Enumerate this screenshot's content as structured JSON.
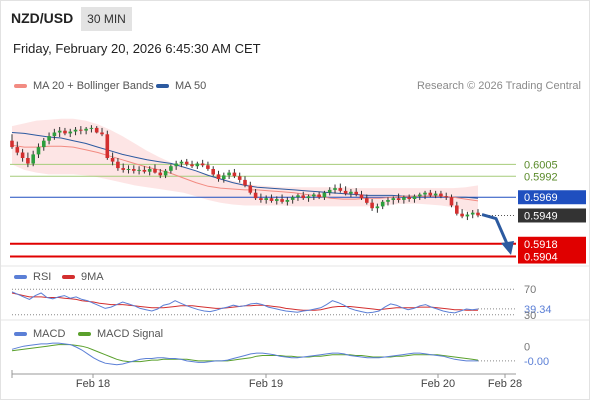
{
  "header": {
    "symbol": "NZD/USD",
    "timeframe": "30 MIN",
    "datetime": "Friday, February 20, 2026 6:45:30 AM CET",
    "credit": "Research © 2026 Trading Central"
  },
  "legend": {
    "ma20_label": "MA 20 + Bollinger Bands",
    "ma50_label": "MA 50",
    "rsi_label": "RSI",
    "rsi_ma_label": "9MA",
    "macd_label": "MACD",
    "macd_signal_label": "MACD Signal"
  },
  "colors": {
    "ma20": "#f28b82",
    "ma50": "#2c5aa0",
    "band_fill": "#fde1e1",
    "candle_up": "#2e9e3e",
    "candle_down": "#d32f2f",
    "pivot": "#1f4fbf",
    "resistance": "#a6cc7a",
    "support": "#e00000",
    "last_price": "#333333",
    "arrow": "#2c5aa0",
    "rsi": "#5b7fd6",
    "rsi_ma": "#d32f2f",
    "macd": "#5b7fd6",
    "macd_signal": "#5aa02c"
  },
  "chart_data": [
    {
      "type": "candlestick",
      "title": "NZD/USD",
      "x_tick_labels": [
        "Feb 18",
        "Feb 19",
        "Feb 20",
        "Feb 28"
      ],
      "ylim": [
        0.5898,
        0.608
      ],
      "levels": [
        {
          "value": 0.6005,
          "label": "0.6005",
          "role": "resistance"
        },
        {
          "value": 0.5992,
          "label": "0.5992",
          "role": "resistance"
        },
        {
          "value": 0.5969,
          "label": "0.5969",
          "role": "pivot"
        },
        {
          "value": 0.5949,
          "label": "0.5949",
          "role": "last"
        },
        {
          "value": 0.5918,
          "label": "0.5918",
          "role": "support"
        },
        {
          "value": 0.5904,
          "label": "0.5904",
          "role": "support"
        }
      ],
      "forecast": {
        "from_price": 0.595,
        "to_price": 0.5909,
        "direction": "down"
      },
      "candles": [
        [
          0.6031,
          0.6038,
          0.6022,
          0.6024
        ],
        [
          0.6024,
          0.603,
          0.6015,
          0.6018
        ],
        [
          0.6018,
          0.6022,
          0.6008,
          0.6012
        ],
        [
          0.6012,
          0.6018,
          0.6002,
          0.6006
        ],
        [
          0.6006,
          0.602,
          0.6003,
          0.6016
        ],
        [
          0.6016,
          0.6028,
          0.6012,
          0.6024
        ],
        [
          0.6024,
          0.6034,
          0.602,
          0.6031
        ],
        [
          0.6031,
          0.604,
          0.6027,
          0.6036
        ],
        [
          0.6036,
          0.6044,
          0.6032,
          0.604
        ],
        [
          0.604,
          0.6046,
          0.6035,
          0.6042
        ],
        [
          0.6042,
          0.6045,
          0.6037,
          0.6039
        ],
        [
          0.6039,
          0.6044,
          0.6035,
          0.6041
        ],
        [
          0.6041,
          0.6046,
          0.6037,
          0.6043
        ],
        [
          0.6043,
          0.6047,
          0.6038,
          0.6042
        ],
        [
          0.6042,
          0.6046,
          0.6038,
          0.6044
        ],
        [
          0.6044,
          0.6048,
          0.604,
          0.6045
        ],
        [
          0.6045,
          0.6047,
          0.6039,
          0.604
        ],
        [
          0.604,
          0.6045,
          0.6036,
          0.6038
        ],
        [
          0.6038,
          0.6042,
          0.601,
          0.6012
        ],
        [
          0.6012,
          0.6018,
          0.6004,
          0.6008
        ],
        [
          0.6008,
          0.6012,
          0.5998,
          0.6001
        ],
        [
          0.6001,
          0.6006,
          0.5996,
          0.5999
        ],
        [
          0.5999,
          0.6004,
          0.5995,
          0.6
        ],
        [
          0.6,
          0.6004,
          0.5995,
          0.5998
        ],
        [
          0.5998,
          0.6003,
          0.5994,
          0.5999
        ],
        [
          0.5999,
          0.6003,
          0.5995,
          0.5997
        ],
        [
          0.5997,
          0.6003,
          0.5993,
          0.6
        ],
        [
          0.6,
          0.6005,
          0.5995,
          0.5996
        ],
        [
          0.5996,
          0.6,
          0.599,
          0.5993
        ],
        [
          0.5993,
          0.6,
          0.599,
          0.5998
        ],
        [
          0.5998,
          0.6005,
          0.5995,
          0.6003
        ],
        [
          0.6003,
          0.6009,
          0.5999,
          0.6006
        ],
        [
          0.6006,
          0.601,
          0.6002,
          0.6008
        ],
        [
          0.6008,
          0.6011,
          0.6003,
          0.6005
        ],
        [
          0.6005,
          0.6009,
          0.6001,
          0.6003
        ],
        [
          0.6003,
          0.6008,
          0.6,
          0.6006
        ],
        [
          0.6006,
          0.601,
          0.6002,
          0.6004
        ],
        [
          0.6004,
          0.6008,
          0.5998,
          0.6
        ],
        [
          0.6,
          0.6003,
          0.5992,
          0.5994
        ],
        [
          0.5994,
          0.5998,
          0.5986,
          0.5989
        ],
        [
          0.5989,
          0.5996,
          0.5985,
          0.5993
        ],
        [
          0.5993,
          0.5999,
          0.5989,
          0.5996
        ],
        [
          0.5996,
          0.6,
          0.599,
          0.5992
        ],
        [
          0.5992,
          0.5996,
          0.5985,
          0.5988
        ],
        [
          0.5988,
          0.5992,
          0.598,
          0.5982
        ],
        [
          0.5982,
          0.5986,
          0.5972,
          0.5974
        ],
        [
          0.5974,
          0.5978,
          0.5966,
          0.5968
        ],
        [
          0.5968,
          0.5973,
          0.5963,
          0.5966
        ],
        [
          0.5966,
          0.5971,
          0.5962,
          0.5968
        ],
        [
          0.5968,
          0.5972,
          0.5963,
          0.5965
        ],
        [
          0.5965,
          0.597,
          0.5961,
          0.5967
        ],
        [
          0.5967,
          0.5972,
          0.5962,
          0.5964
        ],
        [
          0.5964,
          0.5969,
          0.596,
          0.5966
        ],
        [
          0.5966,
          0.5971,
          0.5962,
          0.5969
        ],
        [
          0.5969,
          0.5973,
          0.5965,
          0.5971
        ],
        [
          0.5971,
          0.5975,
          0.5966,
          0.5968
        ],
        [
          0.5968,
          0.5972,
          0.5964,
          0.597
        ],
        [
          0.597,
          0.5974,
          0.5966,
          0.5972
        ],
        [
          0.5972,
          0.5975,
          0.5967,
          0.5969
        ],
        [
          0.5969,
          0.5976,
          0.5966,
          0.5974
        ],
        [
          0.5974,
          0.598,
          0.5971,
          0.5977
        ],
        [
          0.5977,
          0.5983,
          0.5973,
          0.5979
        ],
        [
          0.5979,
          0.5984,
          0.5974,
          0.5976
        ],
        [
          0.5976,
          0.5981,
          0.5971,
          0.5973
        ],
        [
          0.5973,
          0.5978,
          0.5969,
          0.5975
        ],
        [
          0.5975,
          0.5979,
          0.597,
          0.5972
        ],
        [
          0.5972,
          0.5976,
          0.5966,
          0.5968
        ],
        [
          0.5968,
          0.5972,
          0.5961,
          0.5963
        ],
        [
          0.5963,
          0.5967,
          0.5954,
          0.5957
        ],
        [
          0.5957,
          0.5962,
          0.5952,
          0.5959
        ],
        [
          0.5959,
          0.5966,
          0.5956,
          0.5964
        ],
        [
          0.5964,
          0.5969,
          0.596,
          0.5966
        ],
        [
          0.5966,
          0.597,
          0.5961,
          0.5968
        ],
        [
          0.5968,
          0.5973,
          0.5963,
          0.5966
        ],
        [
          0.5966,
          0.5971,
          0.5962,
          0.5969
        ],
        [
          0.5969,
          0.5972,
          0.5964,
          0.5967
        ],
        [
          0.5967,
          0.5972,
          0.5963,
          0.597
        ],
        [
          0.597,
          0.5974,
          0.5966,
          0.5972
        ],
        [
          0.5972,
          0.5976,
          0.5967,
          0.5974
        ],
        [
          0.5974,
          0.5977,
          0.5969,
          0.5971
        ],
        [
          0.5971,
          0.5976,
          0.5968,
          0.5973
        ],
        [
          0.5973,
          0.5976,
          0.5968,
          0.597
        ],
        [
          0.597,
          0.5974,
          0.5966,
          0.5969
        ],
        [
          0.5969,
          0.5972,
          0.5958,
          0.596
        ],
        [
          0.596,
          0.5964,
          0.5949,
          0.5951
        ],
        [
          0.5951,
          0.5956,
          0.5946,
          0.5948
        ],
        [
          0.5948,
          0.5953,
          0.5944,
          0.595
        ],
        [
          0.595,
          0.5955,
          0.5946,
          0.5952
        ],
        [
          0.5952,
          0.5956,
          0.5947,
          0.5949
        ]
      ],
      "ma20": [
        0.6026,
        0.6024,
        0.6024,
        0.6025,
        0.6025,
        0.6024,
        0.6021,
        0.6018,
        0.6014,
        0.601,
        0.6006,
        0.6002,
        0.5999,
        0.5995,
        0.599,
        0.5985,
        0.5981,
        0.5979,
        0.5978,
        0.5977,
        0.5977,
        0.5976,
        0.5975,
        0.5974,
        0.5972,
        0.597,
        0.5968,
        0.5967,
        0.5967,
        0.5968,
        0.5968,
        0.5969,
        0.597,
        0.597,
        0.597,
        0.597,
        0.5969,
        0.5967,
        0.5965
      ],
      "bb_upper": [
        0.6047,
        0.605,
        0.6053,
        0.6054,
        0.6055,
        0.6055,
        0.6053,
        0.6049,
        0.6043,
        0.6036,
        0.6028,
        0.602,
        0.6013,
        0.6007,
        0.6002,
        0.5998,
        0.5994,
        0.599,
        0.5987,
        0.5984,
        0.5982,
        0.5981,
        0.598,
        0.598,
        0.598,
        0.598,
        0.598,
        0.598,
        0.5979,
        0.5979,
        0.5979,
        0.5979,
        0.5979,
        0.5979,
        0.5979,
        0.5979,
        0.5979,
        0.598,
        0.5982
      ],
      "bb_lower": [
        0.6005,
        0.5999,
        0.5996,
        0.5994,
        0.5994,
        0.5994,
        0.5993,
        0.5991,
        0.5988,
        0.5985,
        0.5982,
        0.598,
        0.5978,
        0.5976,
        0.5974,
        0.597,
        0.5966,
        0.5963,
        0.5961,
        0.596,
        0.596,
        0.596,
        0.596,
        0.5959,
        0.5959,
        0.5959,
        0.5959,
        0.5959,
        0.5959,
        0.5959,
        0.596,
        0.5961,
        0.5962,
        0.5962,
        0.5961,
        0.596,
        0.5958,
        0.5954,
        0.595
      ],
      "ma50": [
        0.604,
        0.6039,
        0.6037,
        0.6035,
        0.6034,
        0.6031,
        0.6028,
        0.6024,
        0.602,
        0.6016,
        0.6013,
        0.601,
        0.6008,
        0.6006,
        0.6002,
        0.5998,
        0.5993,
        0.5989,
        0.5985,
        0.5982,
        0.598,
        0.5979,
        0.5978,
        0.5977,
        0.5976,
        0.5975,
        0.5974,
        0.5973,
        0.5972,
        0.5971,
        0.5971,
        0.5971,
        0.597,
        0.597,
        0.597,
        0.597,
        0.5969,
        0.5969,
        0.5968
      ]
    },
    {
      "type": "line",
      "title": "RSI",
      "ylim": [
        25,
        75
      ],
      "level_labels": [
        {
          "value": 70,
          "label": "70"
        },
        {
          "value": 39.34,
          "label": "39.34"
        },
        {
          "value": 30,
          "label": "30"
        }
      ],
      "series": [
        {
          "name": "RSI",
          "values": [
            66,
            62,
            58,
            54,
            60,
            64,
            57,
            55,
            58,
            60,
            56,
            58,
            54,
            52,
            48,
            44,
            40,
            42,
            46,
            50,
            47,
            44,
            40,
            38,
            36,
            39,
            45,
            47,
            52,
            48,
            44,
            41,
            38,
            36,
            35,
            37,
            40,
            42,
            45,
            43,
            44,
            47,
            48,
            46,
            42,
            40,
            38,
            36,
            35,
            34,
            36,
            37,
            39,
            41,
            46,
            52,
            49,
            45,
            40,
            37,
            35,
            33,
            34,
            36,
            42,
            47,
            45,
            41,
            38,
            40,
            44,
            46,
            42,
            39,
            36,
            34,
            33,
            36,
            39,
            38,
            39
          ]
        },
        {
          "name": "9MA",
          "values": [
            64,
            62,
            60,
            58,
            58,
            58,
            57,
            57,
            57,
            56,
            55,
            54,
            52,
            51,
            50,
            48,
            47,
            46,
            46,
            46,
            45,
            44,
            43,
            42,
            41,
            41,
            41,
            42,
            43,
            44,
            44,
            44,
            43,
            42,
            41,
            40,
            40,
            41,
            42,
            43,
            44,
            44,
            45,
            45,
            44,
            43,
            42,
            40,
            39,
            38,
            37,
            37,
            37,
            38,
            40,
            42,
            43,
            43,
            43,
            42,
            41,
            40,
            39,
            38,
            39,
            40,
            41,
            41,
            41,
            41,
            42,
            42,
            42,
            41,
            40,
            39,
            38,
            38,
            37,
            37,
            37
          ]
        }
      ]
    },
    {
      "type": "line",
      "title": "MACD",
      "ylim": [
        -0.0028,
        0.0016
      ],
      "level_labels": [
        {
          "value": 0,
          "label": "0"
        },
        {
          "value": -0.0,
          "label": "-0.00"
        }
      ],
      "series": [
        {
          "name": "MACD",
          "values": [
            0.0004,
            0.0006,
            0.0008,
            0.0009,
            0.001,
            0.0011,
            0.0011,
            0.0012,
            0.0012,
            0.0011,
            0.001,
            0.0007,
            0.0003,
            -0.0002,
            -0.0007,
            -0.0011,
            -0.0014,
            -0.0015,
            -0.0016,
            -0.0015,
            -0.0013,
            -0.0011,
            -0.0009,
            -0.0008,
            -0.0008,
            -0.0007,
            -0.0007,
            -0.0008,
            -0.0008,
            -0.0009,
            -0.0011,
            -0.0012,
            -0.0013,
            -0.0013,
            -0.0012,
            -0.0011,
            -0.0011,
            -0.001,
            -0.0008,
            -0.0006,
            -0.0004,
            -0.0002,
            -0.0001,
            -0.0001,
            -0.0002,
            -0.0003,
            -0.0005,
            -0.0006,
            -0.0007,
            -0.0007,
            -0.0006,
            -0.0005,
            -0.0004,
            -0.0003,
            -0.0002,
            -0.0001,
            -0.0001,
            -0.0002,
            -0.0004,
            -0.0005,
            -0.0006,
            -0.0007,
            -0.0007,
            -0.0007,
            -0.0006,
            -0.0005,
            -0.0004,
            -0.0003,
            -0.0002,
            -0.0001,
            -0.0001,
            -0.0002,
            -0.0003,
            -0.0004,
            -0.0005,
            -0.0007,
            -0.0009,
            -0.001,
            -0.0011,
            -0.0011,
            -0.0011
          ]
        },
        {
          "name": "MACD Signal",
          "values": [
            0.0002,
            0.0003,
            0.0004,
            0.0005,
            0.0006,
            0.0007,
            0.0008,
            0.0009,
            0.001,
            0.001,
            0.001,
            0.0009,
            0.0008,
            0.0006,
            0.0003,
            0.0,
            -0.0003,
            -0.0006,
            -0.0009,
            -0.0011,
            -0.0012,
            -0.0012,
            -0.0012,
            -0.0011,
            -0.001,
            -0.001,
            -0.0009,
            -0.0009,
            -0.0009,
            -0.0009,
            -0.0009,
            -0.001,
            -0.0011,
            -0.0011,
            -0.0011,
            -0.0011,
            -0.0011,
            -0.0011,
            -0.001,
            -0.0009,
            -0.0008,
            -0.0007,
            -0.0005,
            -0.0004,
            -0.0004,
            -0.0004,
            -0.0004,
            -0.0005,
            -0.0005,
            -0.0006,
            -0.0006,
            -0.0006,
            -0.0005,
            -0.0005,
            -0.0004,
            -0.0003,
            -0.0003,
            -0.0003,
            -0.0003,
            -0.0004,
            -0.0004,
            -0.0005,
            -0.0006,
            -0.0006,
            -0.0006,
            -0.0006,
            -0.0005,
            -0.0005,
            -0.0004,
            -0.0003,
            -0.0003,
            -0.0003,
            -0.0003,
            -0.0003,
            -0.0004,
            -0.0005,
            -0.0006,
            -0.0007,
            -0.0008,
            -0.0009,
            -0.001
          ]
        }
      ]
    }
  ]
}
